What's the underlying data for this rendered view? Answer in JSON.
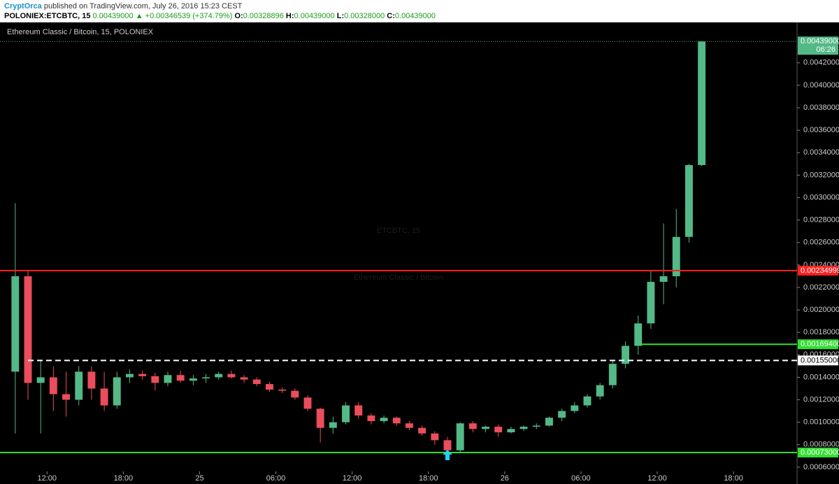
{
  "header": {
    "author": "CryptOrca",
    "published": "published on TradingView.com, July 26, 2016 15:23 CEST",
    "symbol": "POLONIEX:ETCBTC, 15",
    "price": "0.00439000",
    "change": "▲ +0.00346539 (+374.79%)",
    "ohlc": [
      {
        "label": "O:",
        "value": "0.00328896"
      },
      {
        "label": "H:",
        "value": "0.00439000"
      },
      {
        "label": "L:",
        "value": "0.00328000"
      },
      {
        "label": "C:",
        "value": "0.00439000"
      }
    ]
  },
  "chart_data": {
    "type": "candlestick",
    "title": "Ethereum Classic / Bitcoin, 15, POLONIEX",
    "watermark": [
      "ETCBTC, 15",
      "Ethereum Classic / Bitcoin"
    ],
    "up_color": "#53b987",
    "down_color": "#eb4d5c",
    "x": [
      9.5,
      10.5,
      11.5,
      12.5,
      13.5,
      14.5,
      15.5,
      16.5,
      17.5,
      18.5,
      19.5,
      20.5,
      21.5,
      22.5,
      23.5,
      24.5,
      25.5,
      26.5,
      27.5,
      28.5,
      29.5,
      30.5,
      31.5,
      32.5,
      33.5,
      34.5,
      35.5,
      36.5,
      37.5,
      38.5,
      39.5,
      40.5,
      41.5,
      42.5,
      43.5,
      44.5,
      45.5,
      46.5,
      47.5,
      48.5,
      49.5,
      50.5,
      51.5,
      52.5,
      53.5,
      54.5,
      55.5,
      56.5,
      57.5,
      58.5,
      59.5,
      60.5,
      61.5,
      62.5,
      63.5
    ],
    "open": [
      0.00145,
      0.0023,
      0.00135,
      0.0014,
      0.00125,
      0.0012,
      0.00145,
      0.0013,
      0.00115,
      0.0014,
      0.00143,
      0.00141,
      0.00135,
      0.00142,
      0.00137,
      0.00139,
      0.0014,
      0.00143,
      0.0014,
      0.00138,
      0.00134,
      0.00129,
      0.00128,
      0.00122,
      0.00112,
      0.00095,
      0.001,
      0.00115,
      0.00106,
      0.00101,
      0.00104,
      0.00099,
      0.00095,
      0.0009,
      0.00084,
      0.00075,
      0.00099,
      0.00094,
      0.00096,
      0.00091,
      0.00094,
      0.00096,
      0.00097,
      0.00104,
      0.0011,
      0.00115,
      0.00123,
      0.00133,
      0.00152,
      0.00168,
      0.00188,
      0.00225,
      0.0023,
      0.00265,
      0.00329
    ],
    "high": [
      0.00295,
      0.00235,
      0.00155,
      0.0015,
      0.00145,
      0.0015,
      0.0015,
      0.00145,
      0.00145,
      0.00147,
      0.00146,
      0.00144,
      0.00145,
      0.00146,
      0.00142,
      0.00143,
      0.00145,
      0.00146,
      0.00142,
      0.0014,
      0.00136,
      0.00131,
      0.0013,
      0.00124,
      0.00113,
      0.00105,
      0.00118,
      0.00118,
      0.00108,
      0.00106,
      0.00105,
      0.00101,
      0.00097,
      0.00092,
      0.00087,
      0.001,
      0.00101,
      0.00097,
      0.00098,
      0.00096,
      0.00097,
      0.00099,
      0.00105,
      0.00112,
      0.00118,
      0.00125,
      0.00135,
      0.00155,
      0.00172,
      0.00195,
      0.00235,
      0.00277,
      0.0029,
      0.0033,
      0.00439
    ],
    "low": [
      0.0009,
      0.0012,
      0.0009,
      0.0011,
      0.00105,
      0.00115,
      0.0012,
      0.0011,
      0.00112,
      0.00135,
      0.00138,
      0.00128,
      0.00132,
      0.00135,
      0.00133,
      0.00135,
      0.00138,
      0.00139,
      0.00135,
      0.00132,
      0.00127,
      0.00126,
      0.0012,
      0.0011,
      0.00082,
      0.0009,
      0.00098,
      0.00103,
      0.00098,
      0.00099,
      0.00097,
      0.00093,
      0.00088,
      0.0008,
      0.0007,
      0.00073,
      0.00091,
      0.00091,
      0.00087,
      0.0009,
      0.00092,
      0.00094,
      0.00096,
      0.00101,
      0.00108,
      0.00113,
      0.0012,
      0.0013,
      0.00148,
      0.0016,
      0.00183,
      0.00205,
      0.0022,
      0.0026,
      0.00328
    ],
    "close": [
      0.0023,
      0.00135,
      0.0014,
      0.00125,
      0.0012,
      0.00145,
      0.0013,
      0.00115,
      0.0014,
      0.00143,
      0.00141,
      0.00135,
      0.00142,
      0.00137,
      0.00139,
      0.0014,
      0.00143,
      0.0014,
      0.00138,
      0.00134,
      0.00129,
      0.00128,
      0.00122,
      0.00112,
      0.00095,
      0.001,
      0.00115,
      0.00106,
      0.00101,
      0.00104,
      0.00099,
      0.00095,
      0.0009,
      0.00084,
      0.00075,
      0.00099,
      0.00094,
      0.00096,
      0.00091,
      0.00094,
      0.00096,
      0.00097,
      0.00104,
      0.0011,
      0.00115,
      0.00123,
      0.00133,
      0.00152,
      0.00168,
      0.00188,
      0.00225,
      0.0023,
      0.00265,
      0.00329,
      0.00439
    ],
    "xlim": [
      8.3,
      71
    ],
    "ylim": [
      0.00045,
      0.00456
    ],
    "xticks": [
      {
        "value": 12,
        "label": "12:00"
      },
      {
        "value": 18,
        "label": "18:00"
      },
      {
        "value": 24,
        "label": "25"
      },
      {
        "value": 30,
        "label": "06:00"
      },
      {
        "value": 36,
        "label": "12:00"
      },
      {
        "value": 42,
        "label": "18:00"
      },
      {
        "value": 48,
        "label": "26"
      },
      {
        "value": 54,
        "label": "06:00"
      },
      {
        "value": 60,
        "label": "12:00"
      },
      {
        "value": 66,
        "label": "18:00"
      }
    ],
    "yticks": [
      {
        "value": 0.0006,
        "label": "0.00060000"
      },
      {
        "value": 0.0008,
        "label": "0.00080000"
      },
      {
        "value": 0.001,
        "label": "0.00100000"
      },
      {
        "value": 0.0012,
        "label": "0.00120000"
      },
      {
        "value": 0.0014,
        "label": "0.00140000"
      },
      {
        "value": 0.0016,
        "label": "0.00160000"
      },
      {
        "value": 0.0018,
        "label": "0.00180000"
      },
      {
        "value": 0.002,
        "label": "0.00200000"
      },
      {
        "value": 0.0022,
        "label": "0.00220000"
      },
      {
        "value": 0.0024,
        "label": "0.00240000"
      },
      {
        "value": 0.0026,
        "label": "0.00260000"
      },
      {
        "value": 0.0028,
        "label": "0.00280000"
      },
      {
        "value": 0.003,
        "label": "0.00300000"
      },
      {
        "value": 0.0032,
        "label": "0.00320000"
      },
      {
        "value": 0.0034,
        "label": "0.00340000"
      },
      {
        "value": 0.0036,
        "label": "0.00360000"
      },
      {
        "value": 0.0038,
        "label": "0.00380000"
      },
      {
        "value": 0.004,
        "label": "0.00400000"
      },
      {
        "value": 0.0042,
        "label": "0.00420000"
      }
    ],
    "levels": [
      {
        "value": 0.00234999,
        "label": "0.00234999",
        "color": "#ff2020",
        "style": "solid",
        "x_start": 8.3
      },
      {
        "value": 0.001694,
        "label": "0.00169400",
        "color": "#33dd33",
        "style": "solid",
        "x_start": 58.6
      },
      {
        "value": 0.00155,
        "label": "0.00155000",
        "color": "#ffffff",
        "style": "dashed",
        "x_start": 10.5
      },
      {
        "value": 0.00073,
        "label": "0.00073000",
        "color": "#33dd33",
        "style": "solid",
        "x_start": 8.3
      }
    ],
    "last_price": {
      "value": 0.00439,
      "label": "0.00439000",
      "countdown": "06:26",
      "color": "#53b987"
    },
    "marker_x": 43.5
  }
}
